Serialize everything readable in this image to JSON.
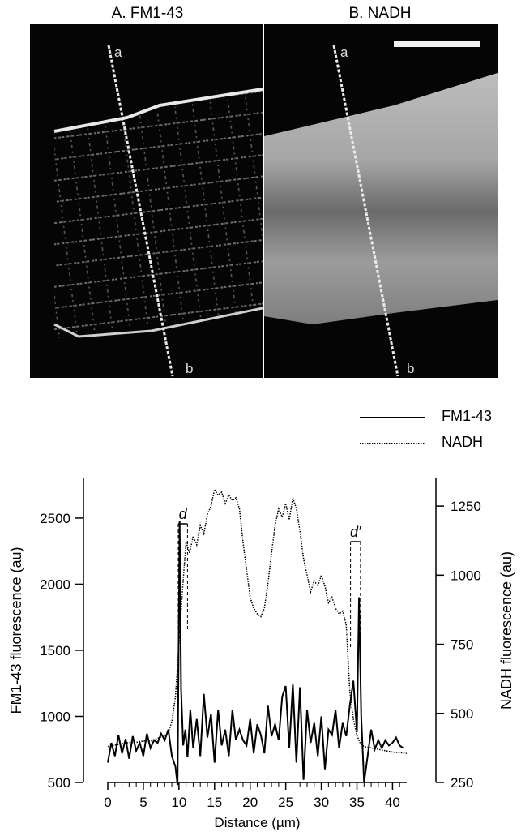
{
  "panels": {
    "a_title": "A. FM1-43",
    "b_title": "B. NADH",
    "line_start_label": "a",
    "line_end_label": "b"
  },
  "legend": {
    "fm": "FM1-43",
    "nadh": "NADH"
  },
  "colors": {
    "micrograph_bg": "#050505",
    "line_color": "#000000"
  },
  "chart_data": {
    "type": "line",
    "xlabel": "Distance (µm)",
    "ylabel_left": "FM1-43 fluorescence (au)",
    "ylabel_right": "NADH fluorescence (au)",
    "xlim": [
      0,
      42
    ],
    "ylim_left": [
      500,
      2800
    ],
    "ylim_right": [
      250,
      1350
    ],
    "x_ticks": [
      "0",
      "5",
      "10",
      "15",
      "20",
      "25",
      "30",
      "35",
      "40"
    ],
    "y_ticks_left": [
      "500",
      "1000",
      "1500",
      "2000",
      "2500"
    ],
    "y_ticks_right": [
      "250",
      "500",
      "750",
      "1000",
      "1250"
    ],
    "annotations": [
      "d",
      "d′"
    ],
    "series": [
      {
        "name": "FM1-43",
        "axis": "left",
        "style": "solid",
        "x": [
          0,
          0.5,
          1,
          1.5,
          2,
          2.5,
          3,
          3.5,
          4,
          4.5,
          5,
          5.5,
          6,
          6.5,
          7,
          7.5,
          8,
          8.5,
          9,
          9.5,
          9.8,
          10.1,
          10.3,
          10.6,
          10.9,
          11.2,
          11.6,
          12,
          12.5,
          13,
          13.5,
          14,
          14.5,
          15,
          15.5,
          16,
          16.5,
          17,
          17.5,
          18,
          18.5,
          19,
          19.5,
          20,
          20.5,
          21,
          21.5,
          22,
          22.5,
          23,
          23.5,
          24,
          24.5,
          25,
          25.5,
          26,
          26.5,
          27,
          27.5,
          28,
          28.5,
          29,
          29.5,
          30,
          30.5,
          31,
          31.5,
          32,
          32.5,
          33,
          33.5,
          34,
          34.5,
          35,
          35.3,
          35.6,
          36,
          36.5,
          37,
          37.5,
          38,
          38.5,
          39,
          39.5,
          40,
          40.5,
          41,
          41.5
        ],
        "values": [
          650,
          800,
          700,
          860,
          720,
          830,
          680,
          850,
          740,
          800,
          700,
          870,
          760,
          820,
          800,
          870,
          820,
          900,
          700,
          620,
          480,
          2480,
          1200,
          780,
          900,
          690,
          1050,
          760,
          980,
          700,
          1170,
          840,
          1020,
          650,
          1050,
          780,
          900,
          700,
          1050,
          820,
          900,
          820,
          780,
          980,
          720,
          940,
          860,
          720,
          1080,
          850,
          940,
          820,
          1150,
          1230,
          760,
          1240,
          650,
          1220,
          520,
          1050,
          800,
          950,
          700,
          1000,
          600,
          900,
          860,
          1050,
          760,
          950,
          850,
          1080,
          1270,
          880,
          1900,
          1000,
          500,
          700,
          900,
          750,
          820,
          760,
          820,
          780,
          800,
          840,
          780,
          760
        ],
        "peak_labels": []
      },
      {
        "name": "NADH",
        "axis": "right",
        "style": "dotted",
        "x": [
          0,
          1,
          2,
          3,
          4,
          5,
          6,
          7,
          8,
          8.5,
          9,
          9.5,
          10,
          10.5,
          11,
          11.5,
          12,
          12.5,
          13,
          13.5,
          14,
          14.5,
          15,
          15.5,
          16,
          16.5,
          17,
          17.5,
          18,
          18.5,
          19,
          19.5,
          20,
          20.5,
          21,
          21.5,
          22,
          22.5,
          23,
          23.5,
          24,
          24.5,
          25,
          25.5,
          26,
          26.5,
          27,
          27.5,
          28,
          28.5,
          29,
          29.5,
          30,
          30.5,
          31,
          31.5,
          32,
          32.5,
          33,
          33.5,
          34,
          34.5,
          35,
          35.5,
          36,
          37,
          38,
          39,
          40,
          41,
          42
        ],
        "values": [
          380,
          385,
          390,
          395,
          395,
          400,
          400,
          410,
          420,
          430,
          470,
          560,
          750,
          950,
          1120,
          1080,
          1140,
          1110,
          1180,
          1150,
          1220,
          1250,
          1310,
          1290,
          1300,
          1260,
          1290,
          1270,
          1280,
          1240,
          1120,
          1020,
          920,
          880,
          860,
          850,
          880,
          970,
          1080,
          1180,
          1240,
          1210,
          1260,
          1200,
          1280,
          1240,
          1160,
          1060,
          1000,
          940,
          980,
          960,
          1000,
          960,
          900,
          920,
          880,
          860,
          870,
          820,
          580,
          480,
          420,
          390,
          380,
          375,
          370,
          365,
          360,
          358,
          355
        ]
      }
    ],
    "legend_placement": "top-right"
  }
}
